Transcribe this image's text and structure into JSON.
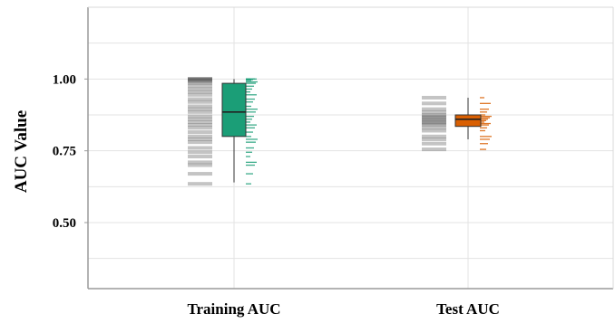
{
  "chart_data": {
    "type": "box",
    "ylabel": "AUC Value",
    "xlabel": "",
    "ylim": [
      0.27,
      1.25
    ],
    "y_ticks": [
      0.5,
      0.75,
      1.0
    ],
    "y_tick_labels": [
      "0.50",
      "0.75",
      "1.00"
    ],
    "grid": true,
    "categories": [
      "Training AUC",
      "Test AUC"
    ],
    "series": [
      {
        "category": "Training AUC",
        "color": "#1b9e77",
        "box": {
          "min": 0.64,
          "q1": 0.8,
          "median": 0.885,
          "q3": 0.985,
          "max": 1.0
        },
        "points": [
          1.0,
          1.0,
          1.0,
          0.998,
          0.995,
          0.99,
          0.985,
          0.975,
          0.965,
          0.955,
          0.945,
          0.93,
          0.92,
          0.905,
          0.895,
          0.885,
          0.87,
          0.86,
          0.85,
          0.84,
          0.83,
          0.815,
          0.8,
          0.79,
          0.78,
          0.76,
          0.745,
          0.73,
          0.71,
          0.7,
          0.67,
          0.635
        ]
      },
      {
        "category": "Test AUC",
        "color": "#d95f02",
        "box": {
          "min": 0.79,
          "q1": 0.835,
          "median": 0.86,
          "q3": 0.875,
          "max": 0.935
        },
        "points": [
          0.935,
          0.915,
          0.895,
          0.885,
          0.875,
          0.87,
          0.865,
          0.86,
          0.855,
          0.85,
          0.845,
          0.84,
          0.83,
          0.82,
          0.8,
          0.79,
          0.775,
          0.755
        ]
      }
    ]
  }
}
